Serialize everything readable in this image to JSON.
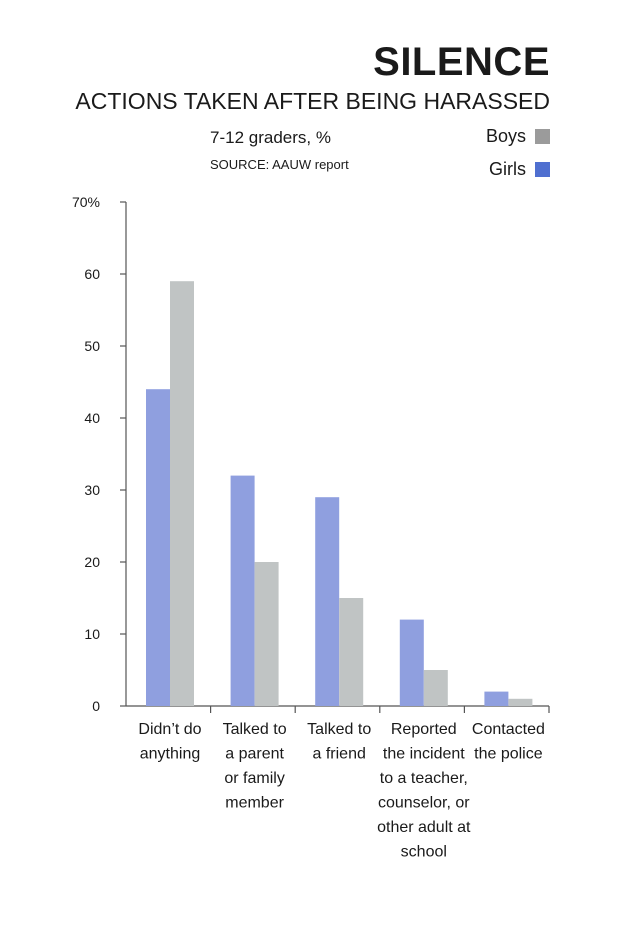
{
  "chart_data": {
    "type": "bar",
    "title": "SILENCE",
    "subtitle": "ACTIONS TAKEN AFTER BEING HARASSED",
    "units_note": "7-12 graders, %",
    "source": "SOURCE: AAUW report",
    "categories": [
      [
        "Didn’t do",
        "anything"
      ],
      [
        "Talked to",
        "a parent",
        "or family",
        "member"
      ],
      [
        "Talked to",
        "a friend"
      ],
      [
        "Reported",
        "the incident",
        "to a teacher,",
        "counselor, or",
        "other adult at",
        "school"
      ],
      [
        "Contacted",
        "the police"
      ]
    ],
    "series": [
      {
        "name": "Girls",
        "color": "#8f9fdf",
        "values": [
          44,
          32,
          29,
          12,
          2
        ]
      },
      {
        "name": "Boys",
        "color": "#c0c4c4",
        "values": [
          59,
          20,
          15,
          5,
          1
        ]
      }
    ],
    "ylim": [
      0,
      70
    ],
    "yticks": [
      0,
      10,
      20,
      30,
      40,
      50,
      60,
      70
    ],
    "ytick_labels": [
      "0",
      "10",
      "20",
      "30",
      "40",
      "50",
      "60",
      "70%"
    ],
    "legend": [
      {
        "label": "Boys",
        "color": "#9b9b9b"
      },
      {
        "label": "Girls",
        "color": "#4f6fd0"
      }
    ],
    "legend_placement": "top-right",
    "grid": false
  }
}
